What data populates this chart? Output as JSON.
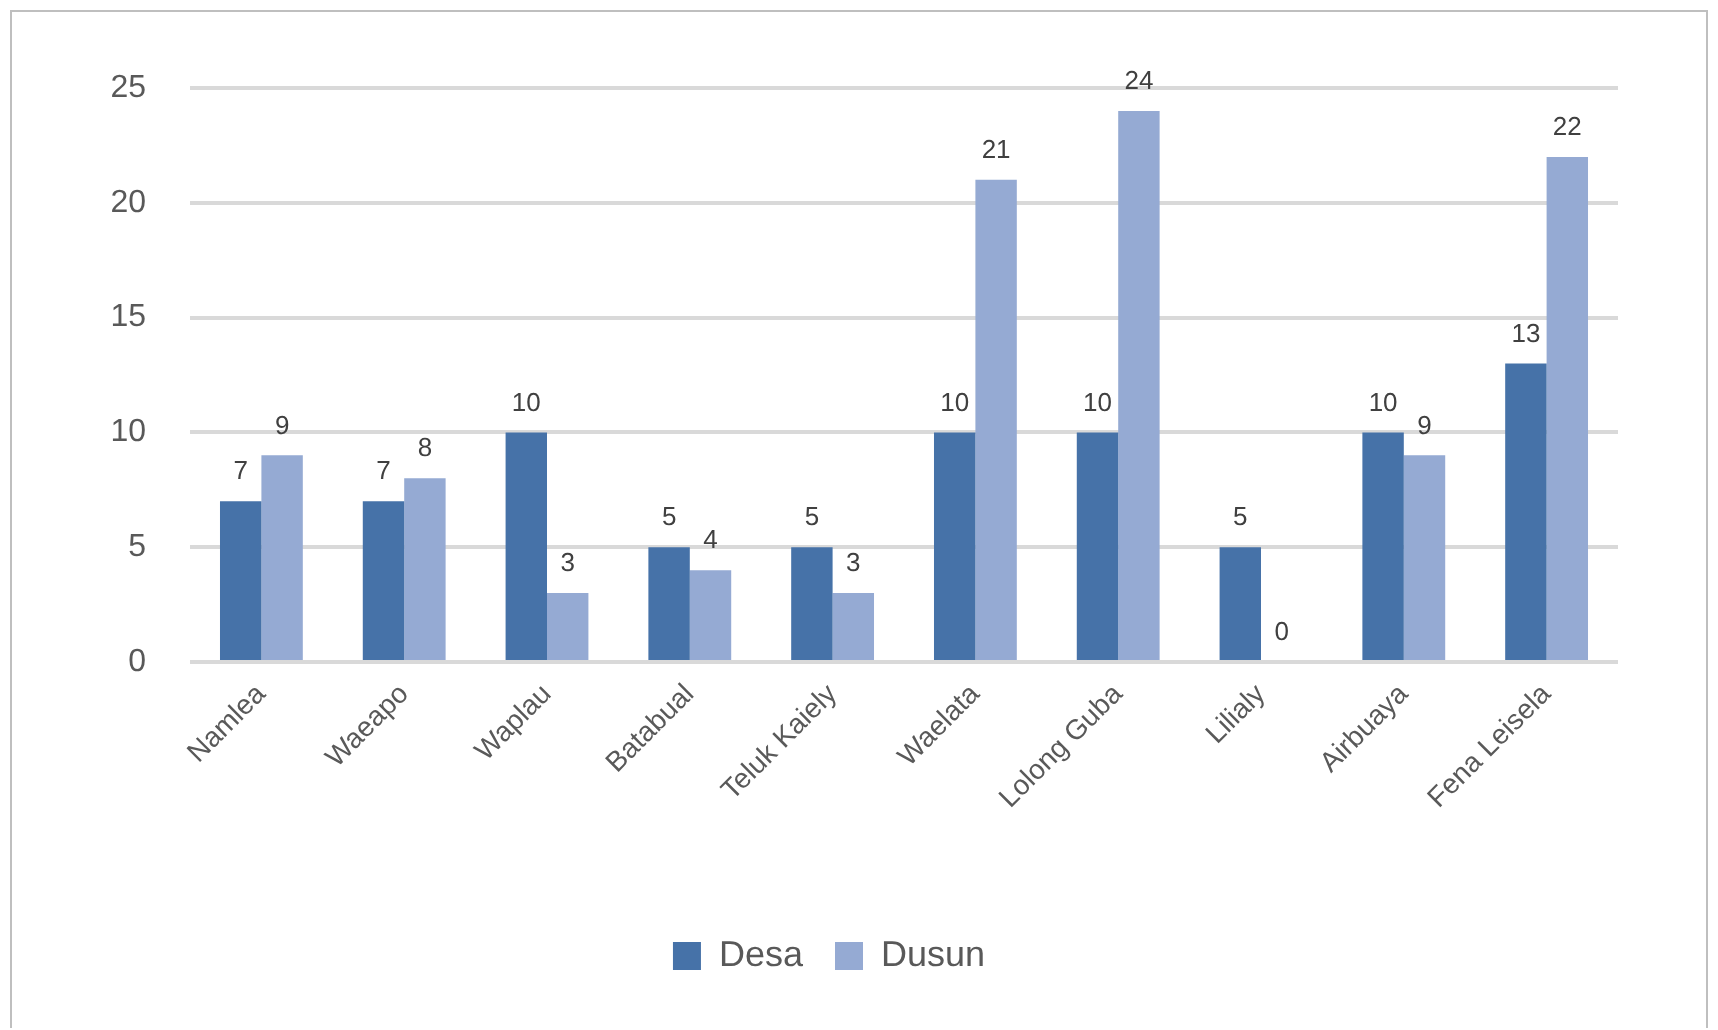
{
  "chart_data": {
    "type": "bar",
    "categories": [
      "Namlea",
      "Waeapo",
      "Waplau",
      "Batabual",
      "Teluk Kaiely",
      "Waelata",
      "Lolong Guba",
      "Lilialy",
      "Airbuaya",
      "Fena Leisela"
    ],
    "series": [
      {
        "name": "Desa",
        "color": "#4672a8",
        "values": [
          7,
          7,
          10,
          5,
          5,
          10,
          10,
          5,
          10,
          13
        ]
      },
      {
        "name": "Dusun",
        "color": "#95aad3",
        "values": [
          9,
          8,
          3,
          4,
          3,
          21,
          24,
          0,
          9,
          22
        ]
      }
    ],
    "ylim": [
      0,
      25
    ],
    "yticks": [
      0,
      5,
      10,
      15,
      20,
      25
    ],
    "grid": "y",
    "legend": "bottom",
    "data_labels": true
  }
}
